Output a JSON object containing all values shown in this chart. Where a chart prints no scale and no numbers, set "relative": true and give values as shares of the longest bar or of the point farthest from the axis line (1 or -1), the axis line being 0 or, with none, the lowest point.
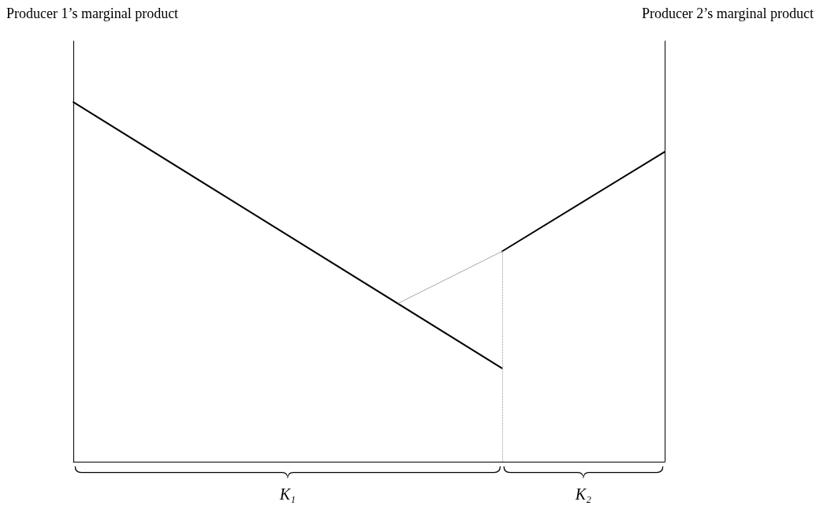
{
  "chart_data": {
    "type": "line",
    "relative": true,
    "marker": "none",
    "line_style": "solid",
    "grid": false,
    "categories": [
      null,
      null,
      null,
      null,
      null,
      null,
      null,
      null,
      null,
      null,
      null,
      null,
      null,
      null,
      null,
      null,
      null,
      null,
      null,
      null,
      null,
      null,
      null,
      null,
      null,
      null,
      null,
      null,
      null,
      null,
      null,
      null,
      null,
      null,
      null,
      null,
      null,
      null,
      null,
      null,
      null
    ],
    "series": [
      {
        "color": "#000000",
        "values": [
          1,
          null,
          null,
          null,
          null,
          null,
          null,
          null,
          null,
          null,
          null,
          null,
          null,
          null,
          null,
          null,
          null,
          null,
          null,
          null,
          null,
          null,
          null,
          null,
          null,
          null,
          null,
          null,
          null,
          0.26,
          null,
          null,
          null,
          null,
          null,
          null,
          null,
          null,
          null,
          null,
          null
        ]
      },
      {
        "color": "#000000",
        "values": [
          null,
          null,
          null,
          null,
          null,
          null,
          null,
          null,
          null,
          null,
          null,
          null,
          null,
          null,
          null,
          null,
          null,
          null,
          null,
          null,
          null,
          null,
          null,
          null,
          null,
          null,
          null,
          null,
          null,
          0.585,
          null,
          null,
          null,
          null,
          null,
          null,
          null,
          null,
          null,
          null,
          0.862
        ]
      },
      {
        "color": "#999999",
        "line_style": "dotted",
        "values": [
          null,
          null,
          null,
          null,
          null,
          null,
          null,
          null,
          null,
          null,
          null,
          null,
          null,
          null,
          null,
          null,
          null,
          null,
          null,
          null,
          null,
          null,
          0.441,
          null,
          null,
          null,
          null,
          null,
          null,
          0.585,
          null,
          null,
          null,
          null,
          null,
          null,
          null,
          null,
          null,
          null,
          null
        ]
      }
    ],
    "annotations": [
      "Producer 1’s marginal product",
      "Producer 2’s marginal product",
      "K₁",
      "K₂"
    ]
  }
}
